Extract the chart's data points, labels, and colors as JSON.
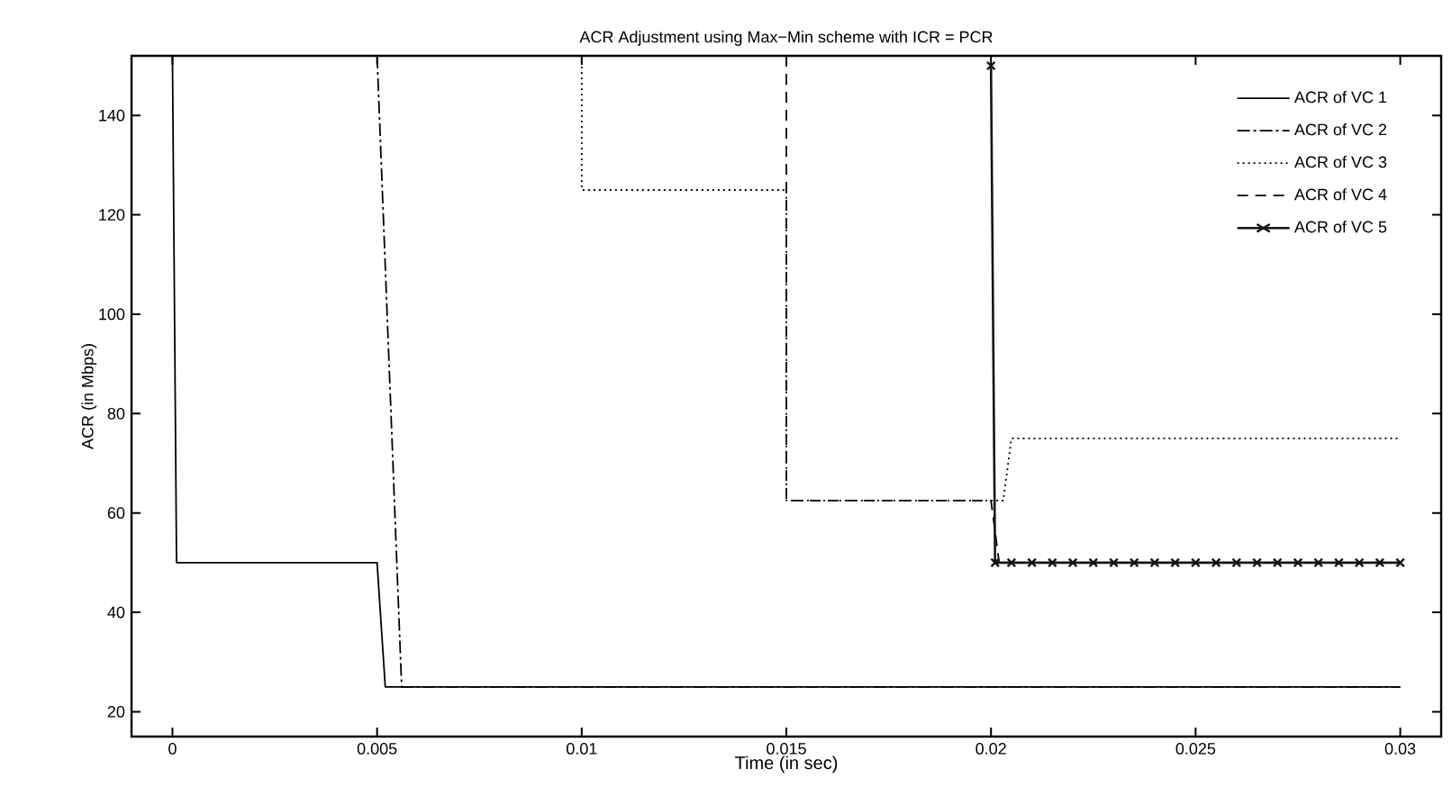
{
  "chart_data": {
    "type": "line",
    "title": "ACR Adjustment using Max−Min scheme with ICR = PCR",
    "xlabel": "Time (in sec)",
    "ylabel": "ACR (in Mbps)",
    "xlim": [
      -0.001,
      0.031
    ],
    "ylim": [
      15,
      152
    ],
    "xticks": [
      0,
      0.005,
      0.01,
      0.015,
      0.02,
      0.025,
      0.03
    ],
    "yticks": [
      20,
      40,
      60,
      80,
      100,
      120,
      140
    ],
    "grid": false,
    "legend": "top right",
    "series": [
      {
        "name": "ACR of VC 1",
        "color": "#000000",
        "line_style": "solid",
        "marker": "none",
        "x": [
          0,
          0.0001,
          0.005,
          0.0052,
          0.03
        ],
        "values": [
          152,
          50,
          50,
          25,
          25
        ]
      },
      {
        "name": "ACR of VC 2",
        "color": "#000000",
        "line_style": "dashdot",
        "marker": "none",
        "x": [
          0.005,
          0.0056,
          0.03
        ],
        "values": [
          152,
          25,
          25
        ]
      },
      {
        "name": "ACR of VC 3",
        "color": "#000000",
        "line_style": "dotted",
        "marker": "none",
        "x": [
          0.01,
          0.01,
          0.015,
          0.015,
          0.0203,
          0.0205,
          0.03
        ],
        "values": [
          152,
          125,
          125,
          62.5,
          62.5,
          75,
          75
        ]
      },
      {
        "name": "ACR of VC 4",
        "color": "#000000",
        "line_style": "dashed",
        "marker": "none",
        "x": [
          0.015,
          0.015,
          0.02,
          0.0202,
          0.03
        ],
        "values": [
          152,
          62.5,
          62.5,
          50,
          50
        ]
      },
      {
        "name": "ACR of VC 5",
        "color": "#141414",
        "line_style": "solid",
        "marker": "cross",
        "x": [
          0.02,
          0.0201,
          0.0205,
          0.021,
          0.0215,
          0.022,
          0.0225,
          0.023,
          0.0235,
          0.024,
          0.0245,
          0.025,
          0.0255,
          0.026,
          0.0265,
          0.027,
          0.0275,
          0.028,
          0.0285,
          0.029,
          0.0295,
          0.03
        ],
        "values": [
          150,
          50,
          50,
          50,
          50,
          50,
          50,
          50,
          50,
          50,
          50,
          50,
          50,
          50,
          50,
          50,
          50,
          50,
          50,
          50,
          50,
          50
        ]
      }
    ]
  }
}
